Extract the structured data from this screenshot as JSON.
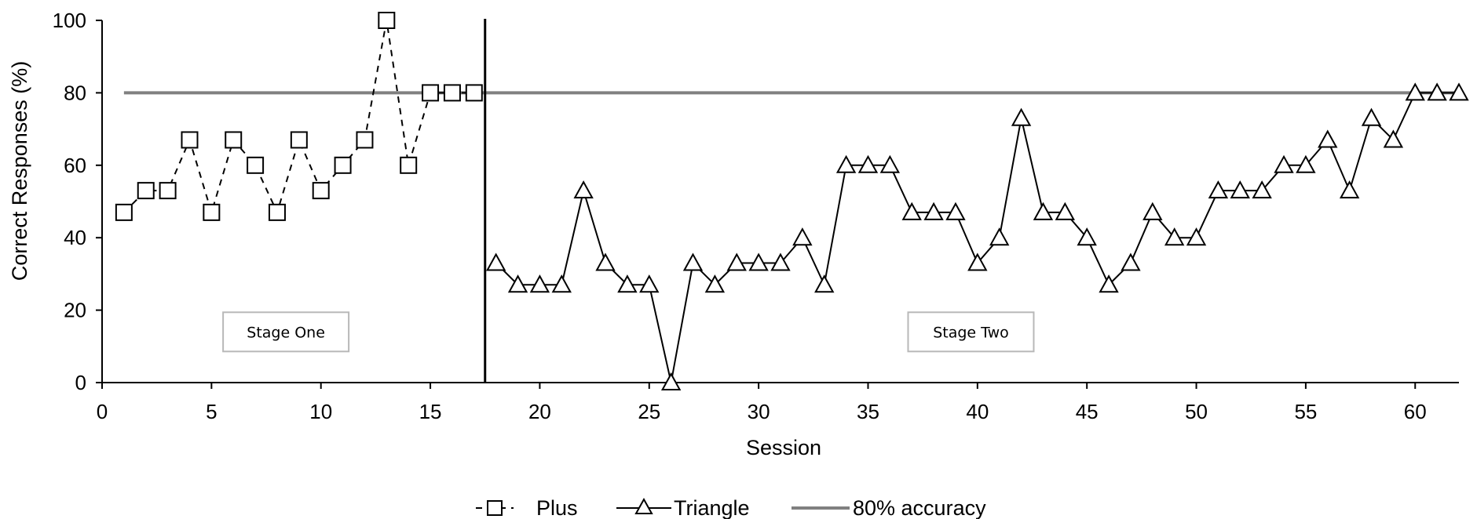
{
  "chart_data": {
    "type": "line",
    "xlabel": "Session",
    "ylabel": "Correct Responses (%)",
    "xlim": [
      0,
      62
    ],
    "ylim": [
      0,
      100
    ],
    "xticks": [
      0,
      5,
      10,
      15,
      20,
      25,
      30,
      35,
      40,
      45,
      50,
      55,
      60
    ],
    "yticks": [
      0,
      20,
      40,
      60,
      80,
      100
    ],
    "grid": false,
    "legend_position": "bottom",
    "phase_change_x": 17.5,
    "annotations": [
      {
        "text": "Stage One",
        "x": 8.4,
        "y": 14
      },
      {
        "text": "Stage Two",
        "x": 39.7,
        "y": 14
      }
    ],
    "series": [
      {
        "name": "Plus",
        "style": "dashed",
        "marker": "square",
        "color": "#000000",
        "x": [
          1,
          2,
          3,
          4,
          5,
          6,
          7,
          8,
          9,
          10,
          11,
          12,
          13,
          14,
          15,
          16,
          17
        ],
        "values": [
          47,
          53,
          53,
          67,
          47,
          67,
          60,
          47,
          67,
          53,
          60,
          67,
          100,
          60,
          80,
          80,
          80
        ]
      },
      {
        "name": "Triangle",
        "style": "solid",
        "marker": "triangle",
        "color": "#000000",
        "x": [
          18,
          19,
          20,
          21,
          22,
          23,
          24,
          25,
          26,
          27,
          28,
          29,
          30,
          31,
          32,
          33,
          34,
          35,
          36,
          37,
          38,
          39,
          40,
          41,
          42,
          43,
          44,
          45,
          46,
          47,
          48,
          49,
          50,
          51,
          52,
          53,
          54,
          55,
          56,
          57,
          58,
          59,
          60,
          61,
          62
        ],
        "values": [
          33,
          27,
          27,
          27,
          53,
          33,
          27,
          27,
          0,
          33,
          27,
          33,
          33,
          33,
          40,
          27,
          60,
          60,
          60,
          47,
          47,
          47,
          33,
          40,
          73,
          47,
          47,
          40,
          27,
          33,
          47,
          40,
          40,
          53,
          53,
          53,
          60,
          60,
          67,
          53,
          73,
          67,
          80,
          80,
          80
        ]
      },
      {
        "name": "80% accuracy",
        "style": "solid",
        "marker": "none",
        "color": "#808080",
        "x": [
          1,
          62
        ],
        "values": [
          80,
          80
        ]
      }
    ]
  }
}
